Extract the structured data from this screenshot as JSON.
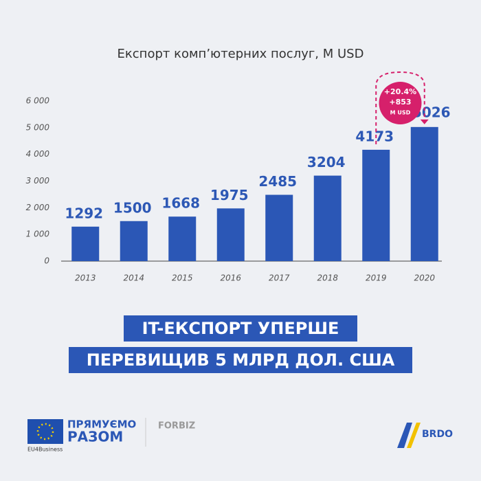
{
  "chart_data": {
    "type": "bar",
    "title": "Експорт комп’ютерних послуг, M USD",
    "categories": [
      "2013",
      "2014",
      "2015",
      "2016",
      "2017",
      "2018",
      "2019",
      "2020"
    ],
    "values": [
      1292,
      1500,
      1668,
      1975,
      2485,
      3204,
      4173,
      5026
    ],
    "color": "#2b57b6",
    "ylim": [
      0,
      6000
    ],
    "yticks": [
      0,
      {
        "value": 1000,
        "label": "1 000"
      },
      {
        "value": 2000,
        "label": "2 000"
      },
      {
        "value": 3000,
        "label": "3 000"
      },
      {
        "value": 4000,
        "label": "4 000"
      },
      {
        "value": 5000,
        "label": "5 000"
      },
      {
        "value": 6000,
        "label": "6 000"
      }
    ],
    "annotation": [
      "+20.4%",
      "+853",
      "M USD"
    ]
  },
  "headline": [
    "IT-ЕКСПОРТ УПЕРШЕ",
    "ПЕРЕВИЩИВ 5 МЛРД ДОЛ. США"
  ],
  "footer": {
    "eu_line1": "ПРЯМУЄМО",
    "eu_line2": "РАЗОМ",
    "eu_tag": "EU4Business",
    "partner": "FORBIZ",
    "brdo": "BRDO"
  }
}
